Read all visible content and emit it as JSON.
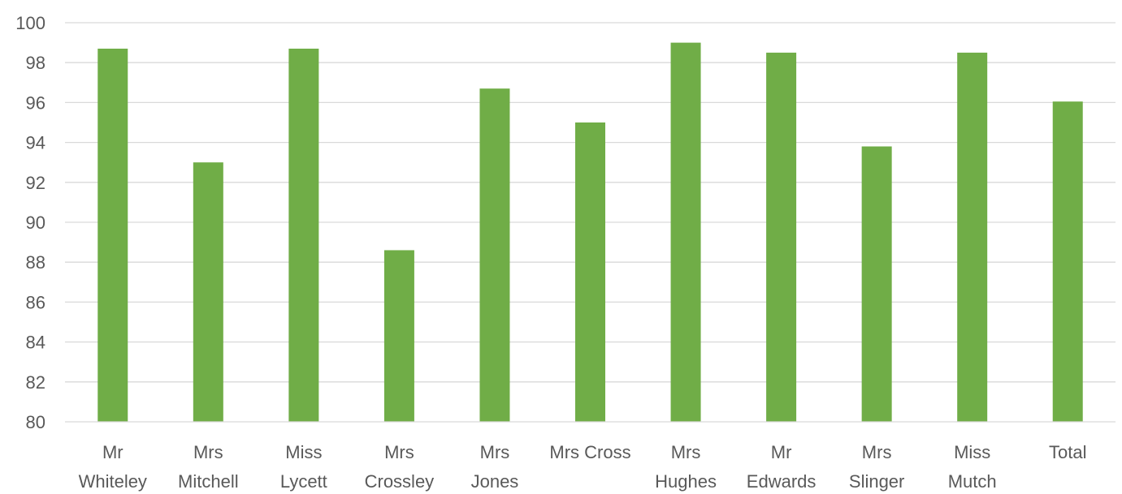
{
  "chart_data": {
    "type": "bar",
    "title": "",
    "xlabel": "",
    "ylabel": "",
    "ylim": [
      80,
      100
    ],
    "yticks": [
      80,
      82,
      84,
      86,
      88,
      90,
      92,
      94,
      96,
      98,
      100
    ],
    "grid": true,
    "legend": "none",
    "categories": [
      [
        "Mr",
        "Whiteley"
      ],
      [
        "Mrs",
        "Mitchell"
      ],
      [
        "Miss",
        "Lycett"
      ],
      [
        "Mrs",
        "Crossley"
      ],
      [
        "Mrs",
        "Jones"
      ],
      [
        "Mrs Cross"
      ],
      [
        "Mrs",
        "Hughes"
      ],
      [
        "Mr",
        "Edwards"
      ],
      [
        "Mrs",
        "Slinger"
      ],
      [
        "Miss",
        "Mutch"
      ],
      [
        "Total"
      ]
    ],
    "values": [
      98.7,
      93.0,
      98.7,
      88.6,
      96.7,
      95.0,
      99.0,
      98.5,
      93.8,
      98.5,
      96.05
    ],
    "bar_color": "#70ad47"
  }
}
